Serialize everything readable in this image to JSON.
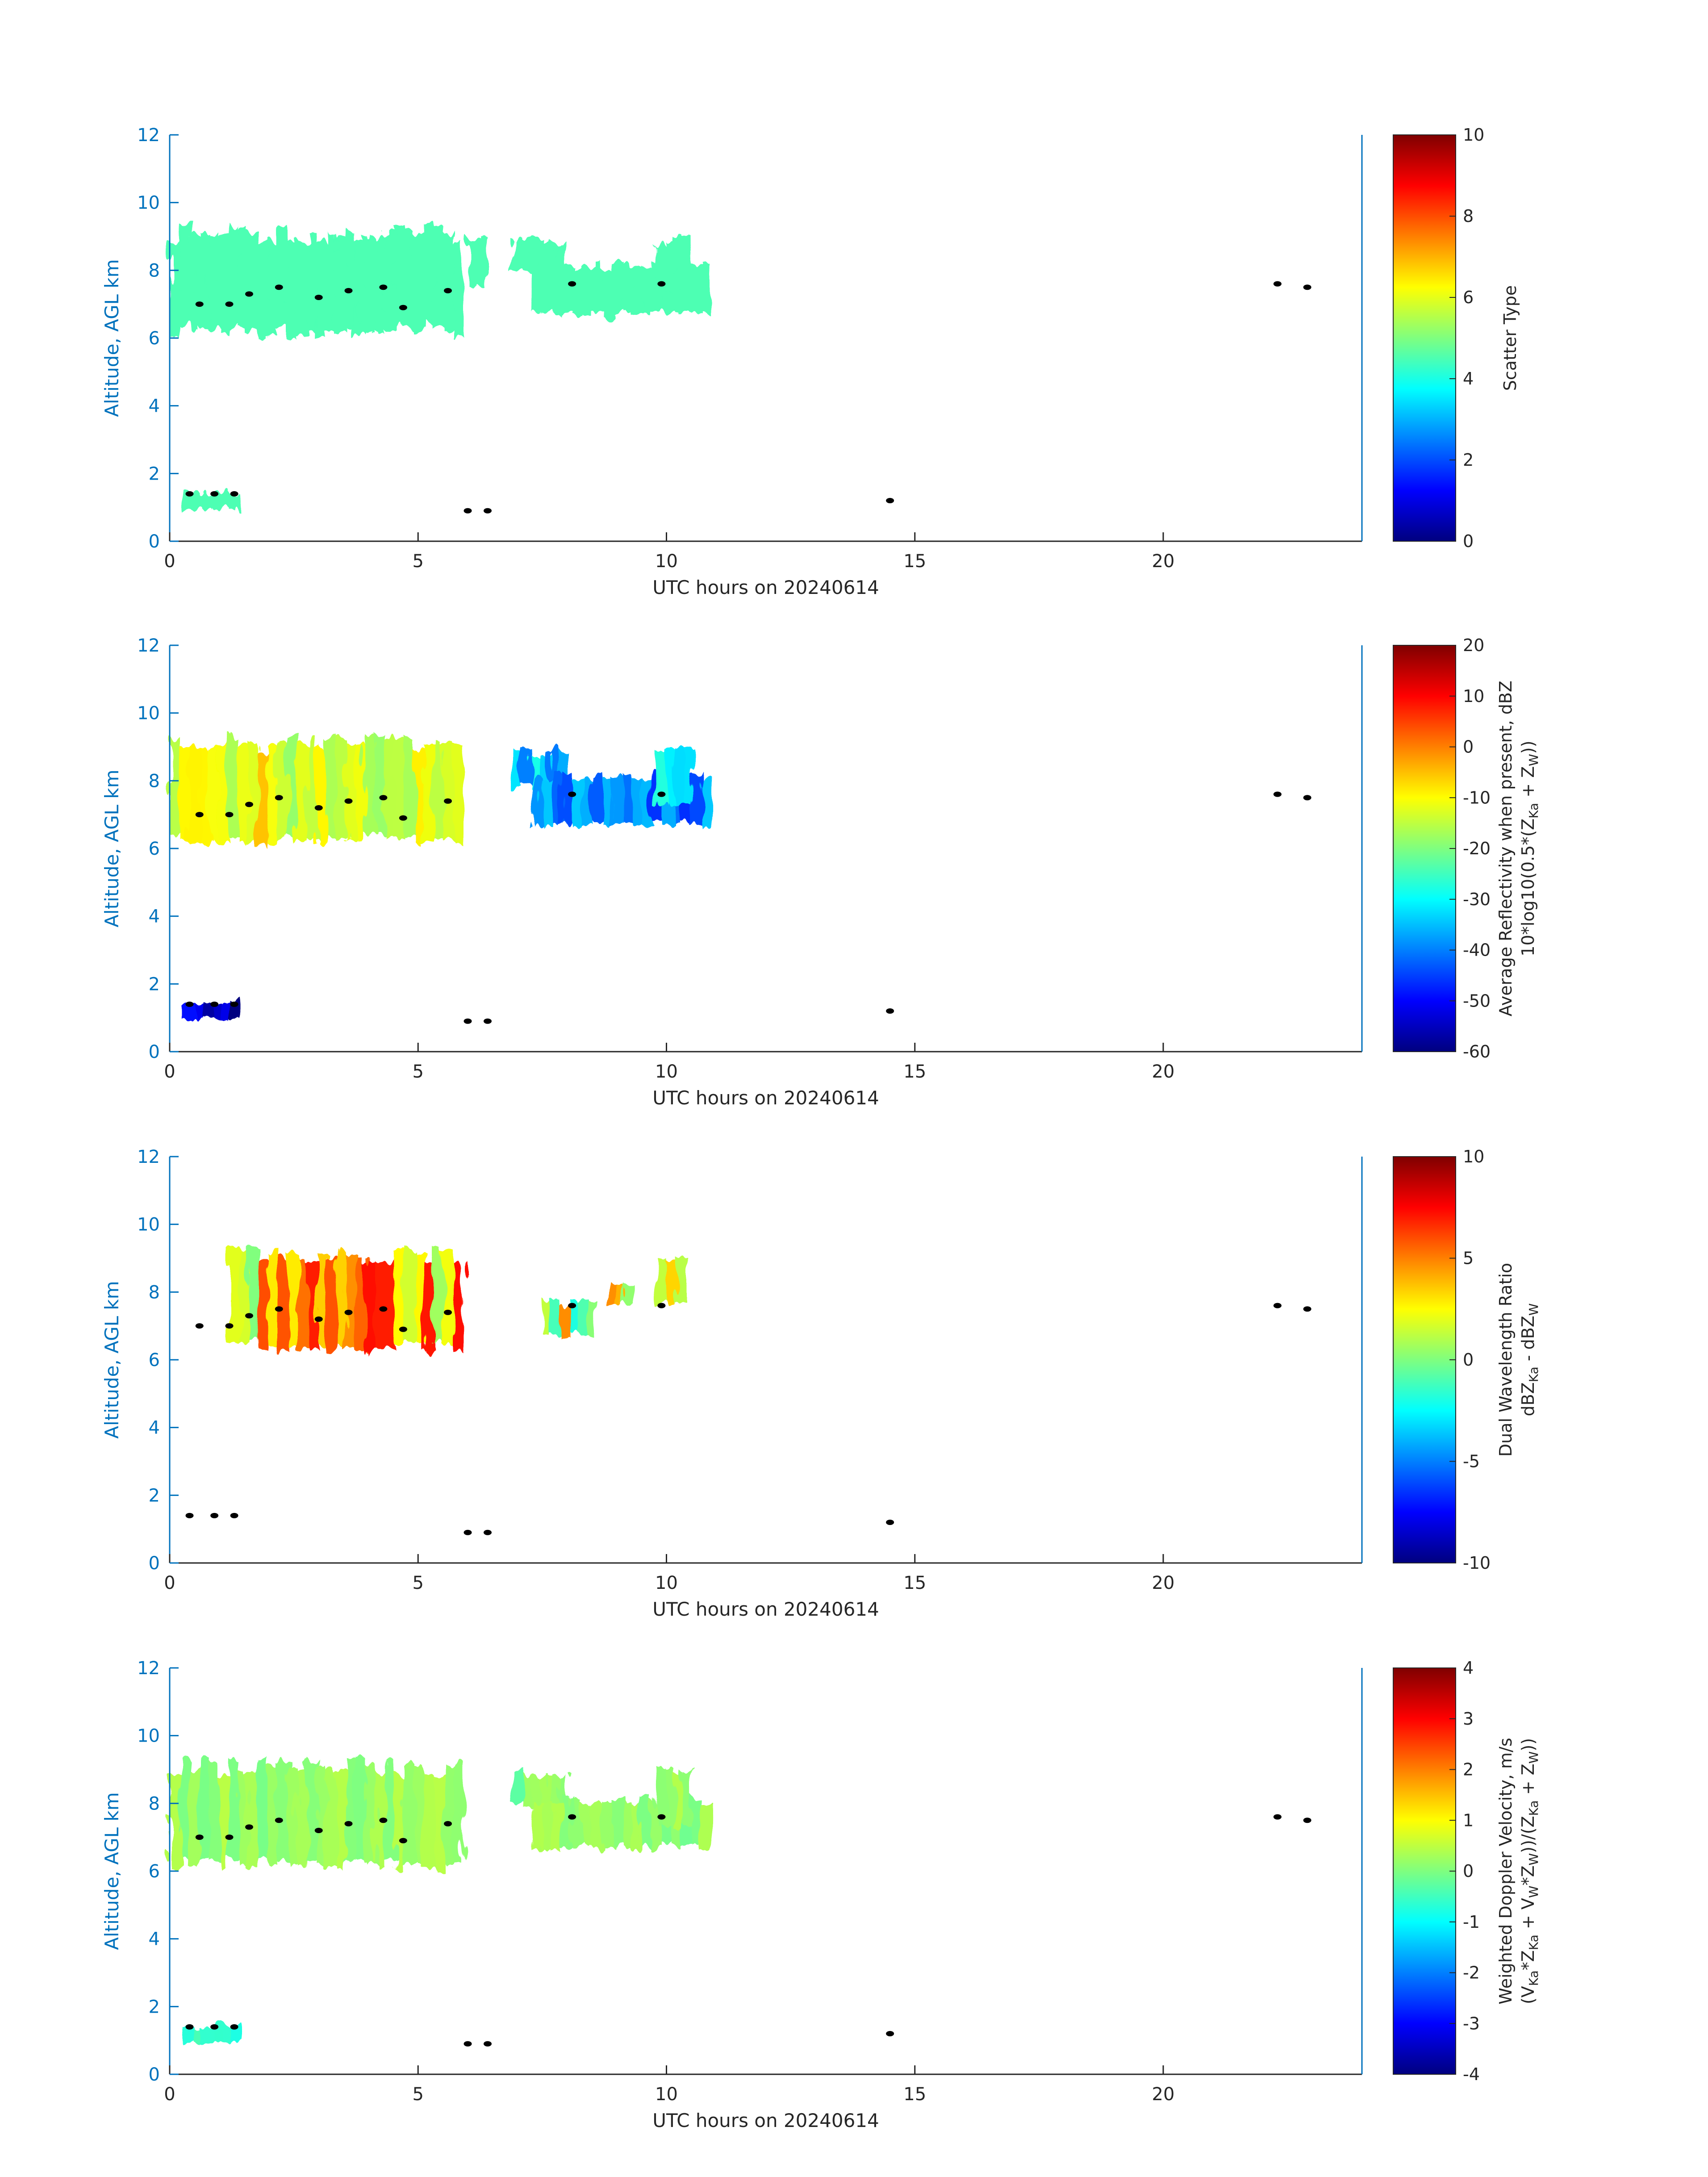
{
  "chart_data": [
    {
      "type": "heatmap",
      "xlabel": "UTC hours on 20240614",
      "ylabel": "Altitude, AGL km",
      "xlim": [
        0,
        24
      ],
      "ylim": [
        0,
        12
      ],
      "x_ticks": [
        "0",
        "5",
        "10",
        "15",
        "20"
      ],
      "y_ticks": [
        "0",
        "2",
        "4",
        "6",
        "8",
        "10",
        "12"
      ],
      "colorbar": {
        "label_lines": [
          "Scatter Type"
        ],
        "range": [
          0,
          10
        ],
        "ticks": [
          "0",
          "2",
          "4",
          "6",
          "8",
          "10"
        ],
        "colormap": "jet"
      },
      "dominant_value": 4.5,
      "cloud_regions": [
        {
          "x": [
            0,
            5.9
          ],
          "y": [
            6.0,
            9.4
          ],
          "value": 4.5
        },
        {
          "x": [
            6.0,
            6.4
          ],
          "y": [
            7.4,
            9.2
          ],
          "value": 4.5
        },
        {
          "x": [
            6.9,
            8.0
          ],
          "y": [
            7.8,
            9.0
          ],
          "value": 4.5
        },
        {
          "x": [
            7.3,
            10.9
          ],
          "y": [
            6.6,
            8.3
          ],
          "value": 4.5
        },
        {
          "x": [
            9.8,
            10.5
          ],
          "y": [
            7.2,
            9.1
          ],
          "value": 4.5
        },
        {
          "x": [
            0.3,
            1.4
          ],
          "y": [
            0.9,
            1.5
          ],
          "value": 4.5
        }
      ],
      "melting_layer_dots": [
        [
          0.6,
          7.0
        ],
        [
          1.2,
          7.0
        ],
        [
          1.6,
          7.3
        ],
        [
          2.2,
          7.5
        ],
        [
          3.0,
          7.2
        ],
        [
          3.6,
          7.4
        ],
        [
          4.3,
          7.5
        ],
        [
          4.7,
          6.9
        ],
        [
          5.6,
          7.4
        ],
        [
          8.1,
          7.6
        ],
        [
          9.9,
          7.6
        ],
        [
          22.3,
          7.6
        ],
        [
          22.9,
          7.5
        ],
        [
          0.4,
          1.4
        ],
        [
          0.9,
          1.4
        ],
        [
          1.3,
          1.4
        ],
        [
          6.0,
          0.9
        ],
        [
          6.4,
          0.9
        ],
        [
          14.5,
          1.2
        ]
      ]
    },
    {
      "type": "heatmap",
      "xlabel": "UTC hours on 20240614",
      "ylabel": "Altitude, AGL km",
      "xlim": [
        0,
        24
      ],
      "ylim": [
        0,
        12
      ],
      "x_ticks": [
        "0",
        "5",
        "10",
        "15",
        "20"
      ],
      "y_ticks": [
        "0",
        "2",
        "4",
        "6",
        "8",
        "10",
        "12"
      ],
      "colorbar": {
        "label_lines": [
          "Average Reflectivity when present, dBZ",
          "10*log10(0.5*(Z",
          "Ka",
          " + Z",
          "W",
          "))"
        ],
        "range": [
          -60,
          20
        ],
        "ticks": [
          "-60",
          "-50",
          "-40",
          "-30",
          "-20",
          "-10",
          "0",
          "10",
          "20"
        ],
        "colormap": "jet"
      },
      "dominant_value": -15,
      "cloud_regions": [
        {
          "x": [
            0,
            5.9
          ],
          "y": [
            6.0,
            9.4
          ],
          "value": -12
        },
        {
          "x": [
            6.9,
            8.0
          ],
          "y": [
            7.8,
            9.0
          ],
          "value": -35
        },
        {
          "x": [
            7.3,
            10.9
          ],
          "y": [
            6.6,
            8.3
          ],
          "value": -40
        },
        {
          "x": [
            9.8,
            10.5
          ],
          "y": [
            7.2,
            9.1
          ],
          "value": -30
        },
        {
          "x": [
            0.3,
            1.4
          ],
          "y": [
            0.9,
            1.5
          ],
          "value": -55
        }
      ],
      "melting_layer_dots": [
        [
          0.6,
          7.0
        ],
        [
          1.2,
          7.0
        ],
        [
          1.6,
          7.3
        ],
        [
          2.2,
          7.5
        ],
        [
          3.0,
          7.2
        ],
        [
          3.6,
          7.4
        ],
        [
          4.3,
          7.5
        ],
        [
          4.7,
          6.9
        ],
        [
          5.6,
          7.4
        ],
        [
          8.1,
          7.6
        ],
        [
          9.9,
          7.6
        ],
        [
          22.3,
          7.6
        ],
        [
          22.9,
          7.5
        ],
        [
          0.4,
          1.4
        ],
        [
          0.9,
          1.4
        ],
        [
          1.3,
          1.4
        ],
        [
          6.0,
          0.9
        ],
        [
          6.4,
          0.9
        ],
        [
          14.5,
          1.2
        ]
      ]
    },
    {
      "type": "heatmap",
      "xlabel": "UTC hours on 20240614",
      "ylabel": "Altitude, AGL km",
      "xlim": [
        0,
        24
      ],
      "ylim": [
        0,
        12
      ],
      "x_ticks": [
        "0",
        "5",
        "10",
        "15",
        "20"
      ],
      "y_ticks": [
        "0",
        "2",
        "4",
        "6",
        "8",
        "10",
        "12"
      ],
      "colorbar": {
        "label_lines": [
          "Dual Wavelength Ratio",
          "dBZ",
          "Ka",
          " - dBZ",
          "W"
        ],
        "range": [
          -10,
          10
        ],
        "ticks": [
          "-10",
          "-5",
          "0",
          "5",
          "10"
        ],
        "colormap": "jet"
      },
      "dominant_value": 4,
      "cloud_regions": [
        {
          "x": [
            1.2,
            5.9
          ],
          "y": [
            6.2,
            9.4
          ],
          "value": 4
        },
        {
          "x": [
            7.5,
            8.6
          ],
          "y": [
            6.6,
            7.8
          ],
          "value": 2
        },
        {
          "x": [
            8.8,
            9.3
          ],
          "y": [
            7.6,
            8.3
          ],
          "value": 3
        },
        {
          "x": [
            9.8,
            10.4
          ],
          "y": [
            7.5,
            9.0
          ],
          "value": 5
        }
      ],
      "melting_layer_dots": [
        [
          0.6,
          7.0
        ],
        [
          1.2,
          7.0
        ],
        [
          1.6,
          7.3
        ],
        [
          2.2,
          7.5
        ],
        [
          3.0,
          7.2
        ],
        [
          3.6,
          7.4
        ],
        [
          4.3,
          7.5
        ],
        [
          4.7,
          6.9
        ],
        [
          5.6,
          7.4
        ],
        [
          8.1,
          7.6
        ],
        [
          9.9,
          7.6
        ],
        [
          22.3,
          7.6
        ],
        [
          22.9,
          7.5
        ],
        [
          0.4,
          1.4
        ],
        [
          0.9,
          1.4
        ],
        [
          1.3,
          1.4
        ],
        [
          6.0,
          0.9
        ],
        [
          6.4,
          0.9
        ],
        [
          14.5,
          1.2
        ]
      ]
    },
    {
      "type": "heatmap",
      "xlabel": "UTC hours on 20240614",
      "ylabel": "Altitude, AGL km",
      "xlim": [
        0,
        24
      ],
      "ylim": [
        0,
        12
      ],
      "x_ticks": [
        "0",
        "5",
        "10",
        "15",
        "20"
      ],
      "y_ticks": [
        "0",
        "2",
        "4",
        "6",
        "8",
        "10",
        "12"
      ],
      "colorbar": {
        "label_lines": [
          "Weighted Doppler Velocity, m/s",
          "(V",
          "Ka",
          "*Z",
          "Ka",
          " + V",
          "W",
          "*Z",
          "W",
          "))/(Z",
          "Ka",
          " + Z",
          "W",
          "))"
        ],
        "range": [
          -4,
          4
        ],
        "ticks": [
          "-4",
          "-3",
          "-2",
          "-1",
          "0",
          "1",
          "2",
          "3",
          "4"
        ],
        "colormap": "jet"
      },
      "dominant_value": 0.2,
      "cloud_regions": [
        {
          "x": [
            0,
            5.9
          ],
          "y": [
            6.0,
            9.4
          ],
          "value": 0.2
        },
        {
          "x": [
            6.9,
            8.0
          ],
          "y": [
            7.8,
            9.0
          ],
          "value": 0.0
        },
        {
          "x": [
            7.3,
            10.9
          ],
          "y": [
            6.6,
            8.3
          ],
          "value": 0.1
        },
        {
          "x": [
            9.8,
            10.5
          ],
          "y": [
            7.2,
            9.1
          ],
          "value": 0.2
        },
        {
          "x": [
            0.3,
            1.4
          ],
          "y": [
            0.9,
            1.5
          ],
          "value": -0.5
        }
      ],
      "melting_layer_dots": [
        [
          0.6,
          7.0
        ],
        [
          1.2,
          7.0
        ],
        [
          1.6,
          7.3
        ],
        [
          2.2,
          7.5
        ],
        [
          3.0,
          7.2
        ],
        [
          3.6,
          7.4
        ],
        [
          4.3,
          7.5
        ],
        [
          4.7,
          6.9
        ],
        [
          5.6,
          7.4
        ],
        [
          8.1,
          7.6
        ],
        [
          9.9,
          7.6
        ],
        [
          22.3,
          7.6
        ],
        [
          22.9,
          7.5
        ],
        [
          0.4,
          1.4
        ],
        [
          0.9,
          1.4
        ],
        [
          1.3,
          1.4
        ],
        [
          6.0,
          0.9
        ],
        [
          6.4,
          0.9
        ],
        [
          14.5,
          1.2
        ]
      ]
    }
  ],
  "colors": {
    "axis_blue": "#0072BD",
    "text_dark": "#262626",
    "dot_black": "#000000"
  }
}
